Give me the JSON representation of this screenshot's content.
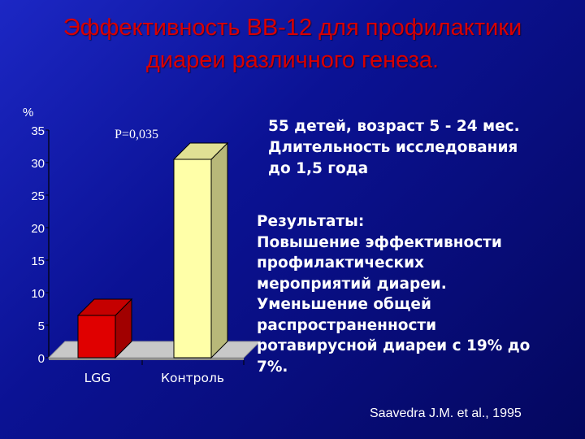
{
  "slide": {
    "title_lines": [
      "Эффективность BB-12 для профилактики",
      "диареи различного генеза."
    ],
    "study_info_lines": [
      "55 детей, возраст 5 - 24 мес.",
      "Длительность исследования",
      "до 1,5 года"
    ],
    "results_lines": [
      "Результаты:",
      "Повышение эффективности",
      "профилактических",
      "мероприятий диареи.",
      "Уменьшение общей",
      "распространенности",
      "ротавирусной диареи с 19%  до",
      "7%."
    ],
    "citation": "Saavedra J.M. et al., 1995"
  },
  "colors": {
    "background": "#0b1294",
    "title": "#d80000",
    "bar_lgg": "#e00000",
    "bar_control": "#ffffa8",
    "text": "#ffffff"
  },
  "chart_data": {
    "type": "bar",
    "title": "",
    "ylabel": "%",
    "xlabel": "",
    "categories": [
      "LGG",
      "Контроль"
    ],
    "values": [
      6.5,
      30.5
    ],
    "colors": [
      "#e00000",
      "#ffffa8"
    ],
    "ylim": [
      0,
      35
    ],
    "yticks": [
      0,
      5,
      10,
      15,
      20,
      25,
      30,
      35
    ],
    "annotation": "P=0,035",
    "style": "3d"
  }
}
